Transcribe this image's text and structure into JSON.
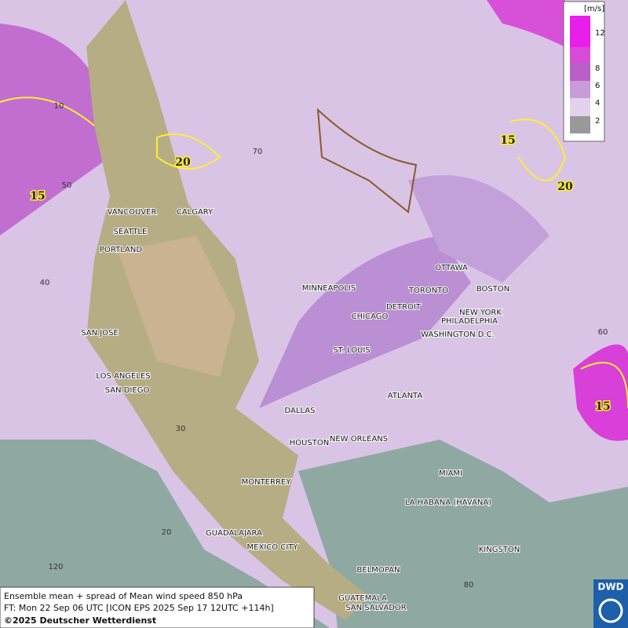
{
  "legend": {
    "unit": "[m/s]",
    "ticks": [
      "12",
      "8",
      "6",
      "4",
      "2"
    ]
  },
  "cities": [
    "VANCOUVER",
    "CALGARY",
    "SEATTLE",
    "PORTLAND",
    "MINNEAPOLIS",
    "OTTAWA",
    "TORONTO",
    "DETROIT",
    "BOSTON",
    "NEW YORK",
    "PHILADELPHIA",
    "CHICAGO",
    "WASHINGTON D.C.",
    "SAN JOSE",
    "ST. LOUIS",
    "LOS ANGELES",
    "SAN DIEGO",
    "ATLANTA",
    "DALLAS",
    "HOUSTON",
    "NEW ORLEANS",
    "MIAMI",
    "MONTERREY",
    "LA HABANA (HAVANA)",
    "GUADALAJARA",
    "MEXICO CITY",
    "KINGSTON",
    "BELMOPAN",
    "GUATEMALA",
    "SAN SALVADOR"
  ],
  "graticule": [
    "70",
    "50",
    "40",
    "30",
    "20",
    "120",
    "60",
    "80",
    "10"
  ],
  "contours": [
    "20",
    "15",
    "15",
    "20",
    "15"
  ],
  "footer": {
    "line1": "Ensemble mean + spread of Mean wind speed 850 hPa",
    "line2": "FT: Mon 22 Sep 06 UTC [ICON EPS 2025 Sep 17 12UTC +114h]",
    "line3": "©2025 Deutscher Wetterdienst"
  },
  "logo": "DWD"
}
